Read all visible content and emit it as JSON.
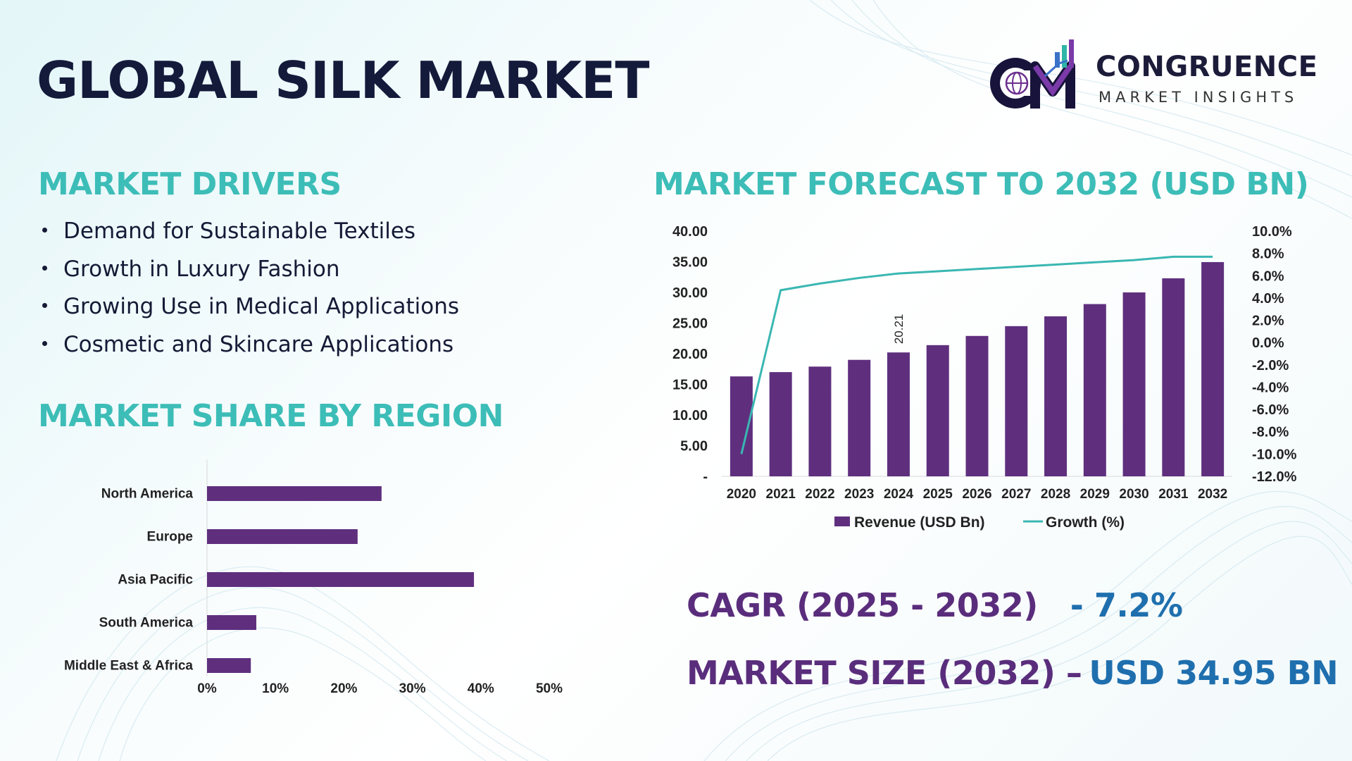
{
  "header": {
    "title": "GLOBAL SILK MARKET",
    "logo": {
      "name": "CONGRUENCE",
      "tagline": "MARKET INSIGHTS",
      "mark_letters": "CM"
    }
  },
  "drivers": {
    "heading": "MARKET DRIVERS",
    "items": [
      "Demand for Sustainable Textiles",
      "Growth in Luxury Fashion",
      "Growing Use in Medical Applications",
      "Cosmetic and Skincare Applications"
    ]
  },
  "region": {
    "heading": "MARKET SHARE BY REGION"
  },
  "forecast": {
    "heading": "MARKET FORECAST TO 2032 (USD BN)"
  },
  "kpis": {
    "cagr_label": "CAGR (2025 - 2032)",
    "cagr_value": "- 7.2%",
    "size_label": "MARKET SIZE (2032) –",
    "size_value": "USD 34.95 BN"
  },
  "colors": {
    "title": "#131a3a",
    "section_heading": "#3dbdb7",
    "bar": "#5f2f7e",
    "growth_line": "#3ab7b2",
    "kpi_label": "#5a2d7c",
    "kpi_value": "#1f6fae"
  },
  "chart_data": [
    {
      "type": "bar",
      "orientation": "horizontal",
      "categories": [
        "North America",
        "Europe",
        "Asia Pacific",
        "South America",
        "Middle East & Africa"
      ],
      "values": [
        25.5,
        22,
        39,
        7.2,
        6.4
      ],
      "x_ticks": [
        "0%",
        "10%",
        "20%",
        "30%",
        "40%",
        "50%"
      ],
      "xlim": [
        0,
        50
      ],
      "unit": "%",
      "grid": false,
      "legend": "none"
    },
    {
      "type": "bar",
      "categories": [
        "2020",
        "2021",
        "2022",
        "2023",
        "2024",
        "2025",
        "2026",
        "2027",
        "2028",
        "2029",
        "2030",
        "2031",
        "2032"
      ],
      "series": [
        {
          "name": "Revenue (USD Bn)",
          "axis": "left",
          "type": "bar",
          "values": [
            16.3,
            17.0,
            17.9,
            19.0,
            20.21,
            21.4,
            22.9,
            24.5,
            26.1,
            28.1,
            30.0,
            32.3,
            34.95
          ]
        },
        {
          "name": "Growth (%)",
          "axis": "right",
          "type": "line",
          "values": [
            -10.0,
            4.7,
            5.3,
            5.8,
            6.2,
            6.4,
            6.6,
            6.8,
            7.0,
            7.2,
            7.4,
            7.7,
            7.7
          ]
        }
      ],
      "y_left": {
        "ylim": [
          0,
          40
        ],
        "ticks": [
          "-",
          "5.00",
          "10.00",
          "15.00",
          "20.00",
          "25.00",
          "30.00",
          "35.00",
          "40.00"
        ]
      },
      "y_right": {
        "ylim": [
          -12,
          10
        ],
        "ticks": [
          "-12.0%",
          "-10.0%",
          "-8.0%",
          "-6.0%",
          "-4.0%",
          "-2.0%",
          "0.0%",
          "2.0%",
          "4.0%",
          "6.0%",
          "8.0%",
          "10.0%"
        ]
      },
      "data_labels": [
        {
          "category": "2024",
          "text": "20.21"
        }
      ],
      "legend": "bottom",
      "grid": false
    }
  ]
}
